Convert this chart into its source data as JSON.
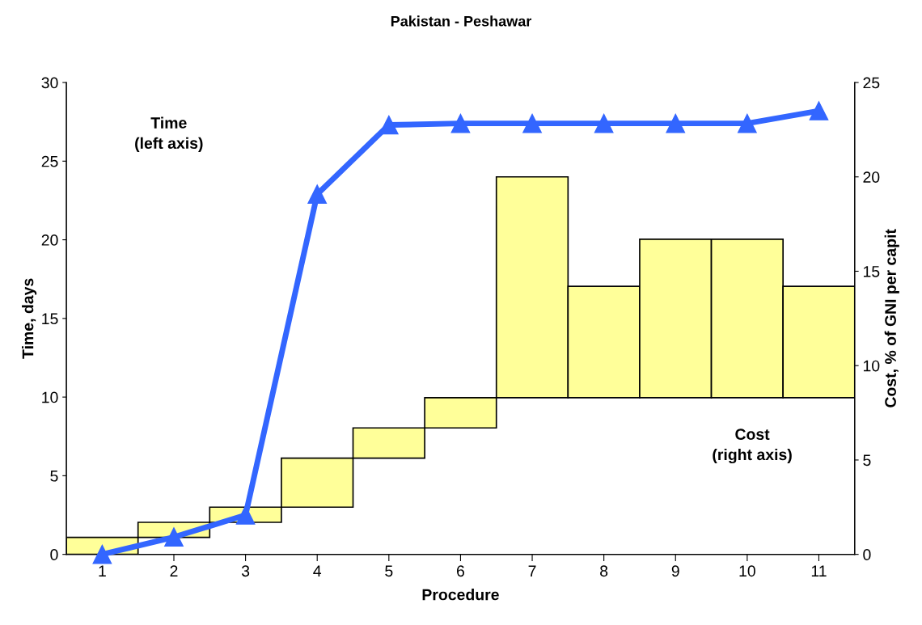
{
  "chart_data": {
    "type": "bar",
    "title": "Pakistan - Peshawar",
    "xlabel": "Procedure",
    "ylabel": "Time, days",
    "y2label": "Cost, % of GNI per capit",
    "categories": [
      "1",
      "2",
      "3",
      "4",
      "5",
      "6",
      "7",
      "8",
      "9",
      "10",
      "11"
    ],
    "series": [
      {
        "axis": "y2",
        "color": "#ffff99",
        "base": [
          0,
          0.9,
          1.7,
          2.5,
          5.1,
          6.7,
          8.3,
          8.3,
          8.3,
          8.3,
          8.3
        ],
        "values": [
          0.9,
          0.8,
          0.8,
          2.6,
          1.6,
          1.6,
          11.7,
          5.9,
          8.4,
          8.4,
          5.9
        ]
      },
      {
        "type": "line",
        "color": "#3366ff",
        "marker": "triangle",
        "line_style": "solid",
        "values": [
          0,
          1.1,
          2.5,
          22.9,
          27.3,
          27.4,
          27.4,
          27.4,
          27.4,
          27.4,
          28.2
        ]
      }
    ],
    "ylim": [
      0,
      30
    ],
    "yticks": [
      0,
      5,
      10,
      15,
      20,
      25,
      30
    ],
    "y2lim": [
      0,
      25
    ],
    "y2ticks": [
      0,
      5,
      10,
      15,
      20,
      25
    ],
    "grid": false,
    "legend": false,
    "annotations": [
      "Time\n(left axis)",
      "Cost\n(right axis)"
    ]
  }
}
